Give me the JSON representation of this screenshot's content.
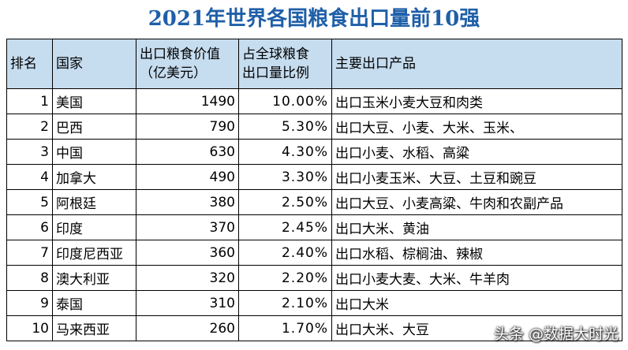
{
  "title": "2021年世界各国粮食出口量前10强",
  "headers": {
    "rank": "排名",
    "country": "国家",
    "value_line1": "出口粮食价值",
    "value_line2": "（亿美元）",
    "share_line1": "占全球粮食",
    "share_line2": "出口量比例",
    "products": "主要出口产品"
  },
  "rows": [
    {
      "rank": "1",
      "country": "美国",
      "value": "1490",
      "share": "10.00%",
      "products": "出口玉米小麦大豆和肉类"
    },
    {
      "rank": "2",
      "country": "巴西",
      "value": "790",
      "share": "5.30%",
      "products": "出口大豆、小麦、大米、玉米、"
    },
    {
      "rank": "3",
      "country": "中国",
      "value": "630",
      "share": "4.30%",
      "products": "出口小麦、水稻、高粱"
    },
    {
      "rank": "4",
      "country": "加拿大",
      "value": "490",
      "share": "3.30%",
      "products": "出口小麦玉米、大豆、土豆和豌豆"
    },
    {
      "rank": "5",
      "country": "阿根廷",
      "value": "380",
      "share": "2.50%",
      "products": "出口大豆、小麦高粱、牛肉和农副产品"
    },
    {
      "rank": "6",
      "country": "印度",
      "value": "370",
      "share": "2.45%",
      "products": "出口大米、黄油"
    },
    {
      "rank": "7",
      "country": "印度尼西亚",
      "value": "360",
      "share": "2.40%",
      "products": "出口水稻、棕榈油、辣椒"
    },
    {
      "rank": "8",
      "country": "澳大利亚",
      "value": "320",
      "share": "2.20%",
      "products": "出口小麦大麦、大米、牛羊肉"
    },
    {
      "rank": "9",
      "country": "泰国",
      "value": "310",
      "share": "2.10%",
      "products": "出口大米"
    },
    {
      "rank": "10",
      "country": "马来西亚",
      "value": "260",
      "share": "1.70%",
      "products": "出口大米、大豆"
    }
  ],
  "watermark": "头条 @数据大时光"
}
